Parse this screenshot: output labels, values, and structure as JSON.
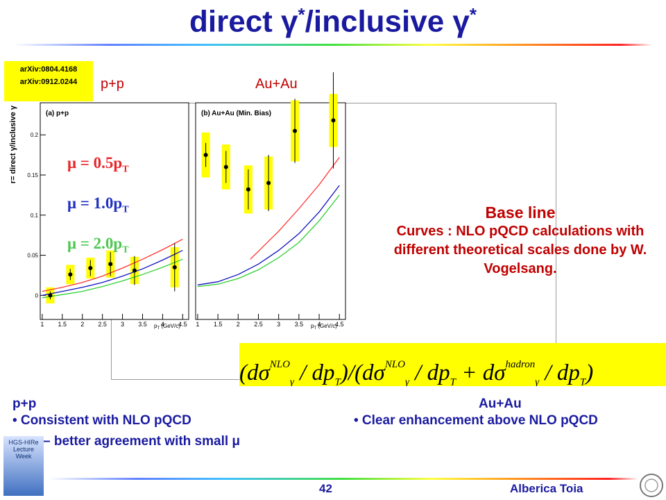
{
  "title": {
    "main": "direct γ",
    "sup1": "*",
    "mid": "/inclusive γ",
    "sup2": "*"
  },
  "refs": [
    "arXiv:0804.4168",
    "arXiv:0912.0244"
  ],
  "panel_labels": [
    "p+p",
    "Au+Au"
  ],
  "scales": [
    {
      "text": "μ = 0.5p",
      "sub": "T",
      "color": "#e8262a"
    },
    {
      "text": "μ = 1.0p",
      "sub": "T",
      "color": "#2030c0"
    },
    {
      "text": "μ = 2.0p",
      "sub": "T",
      "color": "#4cc850"
    }
  ],
  "baseline": {
    "title": "Base line",
    "text": "Curves : NLO pQCD calculations with different theoretical scales done by W. Vogelsang."
  },
  "formula": [
    "(dσ",
    "NLO",
    "γ",
    " / dp",
    "T",
    ")/(dσ",
    "NLO",
    "γ",
    " / dp",
    "T",
    " + dσ",
    "hadron",
    "γ",
    " / dp",
    "T",
    ")"
  ],
  "conclusions": {
    "pp": {
      "head": "p+p",
      "lines": [
        "• Consistent with NLO pQCD",
        "– better agreement with small μ"
      ]
    },
    "auau": {
      "head": "Au+Au",
      "lines": [
        "• Clear enhancement above NLO pQCD"
      ]
    }
  },
  "footer": {
    "page": "42",
    "author": "Alberica Toia",
    "logo": "HGS-HIRe Lecture Week"
  },
  "chart_data": [
    {
      "type": "scatter",
      "title": "(a) p+p",
      "y_label": "r= direct γ/inclusive γ",
      "x_label": {
        "text": "p",
        "sub": "T",
        "rest": " (GeV/c)"
      },
      "xlim": [
        0.95,
        4.65
      ],
      "ylim": [
        -0.03,
        0.24
      ],
      "xticks": [
        1,
        1.5,
        2,
        2.5,
        3,
        3.5,
        4,
        4.5
      ],
      "yticks": [
        0,
        0.05,
        0.1,
        0.15,
        0.2
      ],
      "points": {
        "color": "#000000",
        "band_color": "#ffff00",
        "x": [
          1.2,
          1.7,
          2.2,
          2.7,
          3.3,
          4.3
        ],
        "values": [
          0.0,
          0.026,
          0.034,
          0.039,
          0.031,
          0.035
        ],
        "errors": [
          0.005,
          0.007,
          0.01,
          0.015,
          0.018,
          0.03
        ],
        "sys": [
          0.01,
          0.012,
          0.013,
          0.017,
          0.017,
          0.025
        ]
      },
      "series": [
        {
          "color": "#ff3030",
          "x": [
            1,
            1.5,
            2,
            2.5,
            3,
            3.5,
            4,
            4.5
          ],
          "values": [
            0.005,
            0.01,
            0.016,
            0.024,
            0.034,
            0.045,
            0.057,
            0.07
          ]
        },
        {
          "color": "#1010c0",
          "x": [
            1,
            1.5,
            2,
            2.5,
            3,
            3.5,
            4,
            4.5
          ],
          "values": [
            0.0,
            0.005,
            0.01,
            0.016,
            0.024,
            0.033,
            0.044,
            0.056
          ]
        },
        {
          "color": "#30d030",
          "x": [
            1,
            1.5,
            2,
            2.5,
            3,
            3.5,
            4,
            4.5
          ],
          "values": [
            -0.003,
            0.001,
            0.005,
            0.011,
            0.018,
            0.026,
            0.035,
            0.045
          ]
        }
      ]
    },
    {
      "type": "scatter",
      "title": "(b) Au+Au (Min. Bias)",
      "x_label": {
        "text": "p",
        "sub": "T",
        "rest": " (GeV/c)"
      },
      "xlim": [
        0.95,
        4.65
      ],
      "ylim": [
        -0.03,
        0.24
      ],
      "xticks": [
        1,
        1.5,
        2,
        2.5,
        3,
        3.5,
        4,
        4.5
      ],
      "points": {
        "color": "#000000",
        "band_color": "#ffff00",
        "x": [
          1.2,
          1.7,
          2.25,
          2.75,
          3.4,
          4.35
        ],
        "values": [
          0.175,
          0.16,
          0.132,
          0.14,
          0.205,
          0.218
        ],
        "errors": [
          0.015,
          0.02,
          0.025,
          0.035,
          0.04,
          0.06
        ],
        "sys": [
          0.028,
          0.028,
          0.03,
          0.033,
          0.038,
          0.033
        ]
      },
      "series": [
        {
          "color": "#ff3030",
          "x": [
            2.3,
            2.5,
            3,
            3.5,
            4,
            4.5
          ],
          "values": [
            0.045,
            0.055,
            0.08,
            0.108,
            0.138,
            0.172
          ]
        },
        {
          "color": "#1010c0",
          "x": [
            1,
            1.5,
            2,
            2.5,
            3,
            3.5,
            4,
            4.5
          ],
          "values": [
            0.013,
            0.017,
            0.026,
            0.039,
            0.056,
            0.077,
            0.104,
            0.137
          ]
        },
        {
          "color": "#30d030",
          "x": [
            1,
            1.5,
            2,
            2.5,
            3,
            3.5,
            4,
            4.5
          ],
          "values": [
            0.011,
            0.014,
            0.021,
            0.032,
            0.047,
            0.066,
            0.093,
            0.125
          ]
        }
      ]
    }
  ]
}
